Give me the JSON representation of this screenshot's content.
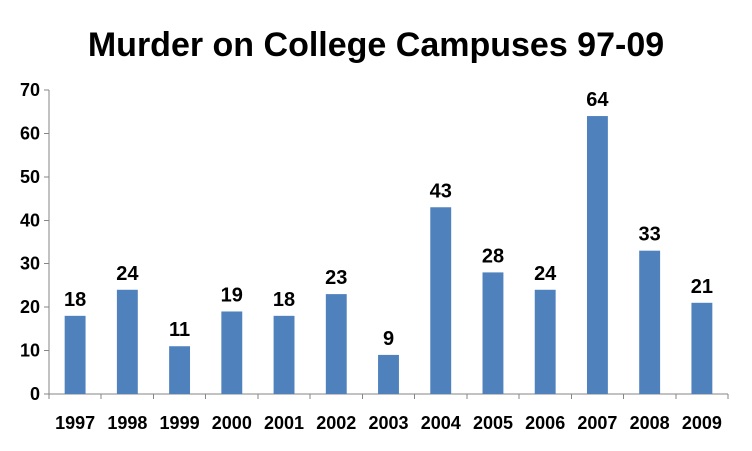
{
  "chart_data": {
    "type": "bar",
    "title": "Murder on College Campuses 97-09",
    "xlabel": "",
    "ylabel": "",
    "categories": [
      "1997",
      "1998",
      "1999",
      "2000",
      "2001",
      "2002",
      "2003",
      "2004",
      "2005",
      "2006",
      "2007",
      "2008",
      "2009"
    ],
    "values": [
      18,
      24,
      11,
      19,
      18,
      23,
      9,
      43,
      28,
      24,
      64,
      33,
      21
    ],
    "ylim": [
      0,
      70
    ],
    "yticks": [
      0,
      10,
      20,
      30,
      40,
      50,
      60,
      70
    ],
    "grid": false,
    "legend": "none",
    "bar_color": "#4f81bd",
    "data_labels": true
  }
}
